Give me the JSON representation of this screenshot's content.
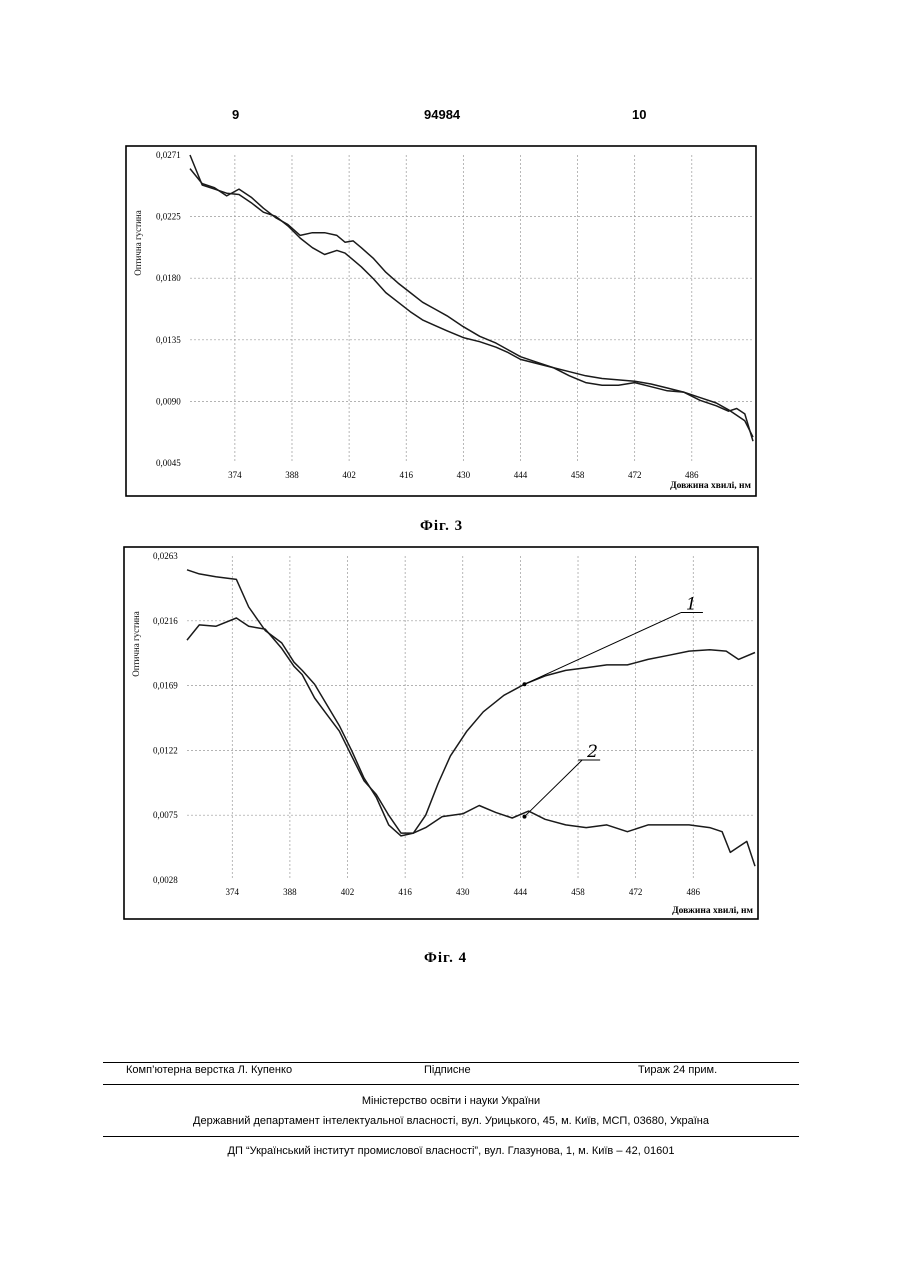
{
  "header": {
    "left_page": "9",
    "patent_number": "94984",
    "right_page": "10"
  },
  "chart_data": [
    {
      "type": "line",
      "caption": "Фіг. 3",
      "ylabel": "Оптична густина",
      "xlabel": "Довжина хвилі, нм",
      "ylim": [
        0.0045,
        0.0271
      ],
      "xlim": [
        363,
        501
      ],
      "y_ticks": [
        "0,0271",
        "0,0225",
        "0,0180",
        "0,0135",
        "0,0090",
        "0,0045"
      ],
      "x_ticks": [
        "374",
        "388",
        "402",
        "416",
        "430",
        "444",
        "458",
        "472",
        "486"
      ],
      "series": [
        {
          "values": [
            [
              363,
              0.0271
            ],
            [
              366,
              0.0249
            ],
            [
              369,
              0.0246
            ],
            [
              372,
              0.0243
            ],
            [
              375,
              0.0242
            ],
            [
              378,
              0.0236
            ],
            [
              381,
              0.0229
            ],
            [
              384,
              0.0226
            ],
            [
              387,
              0.0219
            ],
            [
              390,
              0.021
            ],
            [
              393,
              0.0203
            ],
            [
              396,
              0.0198
            ],
            [
              399,
              0.0201
            ],
            [
              401,
              0.0199
            ],
            [
              403,
              0.0194
            ],
            [
              405,
              0.0189
            ],
            [
              408,
              0.018
            ],
            [
              411,
              0.017
            ],
            [
              414,
              0.0163
            ],
            [
              417,
              0.0156
            ],
            [
              420,
              0.015
            ],
            [
              423,
              0.0146
            ],
            [
              426,
              0.0142
            ],
            [
              430,
              0.0137
            ],
            [
              434,
              0.0134
            ],
            [
              438,
              0.013
            ],
            [
              441,
              0.0126
            ],
            [
              444,
              0.0121
            ],
            [
              448,
              0.0118
            ],
            [
              452,
              0.0115
            ],
            [
              456,
              0.0112
            ],
            [
              460,
              0.0109
            ],
            [
              464,
              0.0107
            ],
            [
              468,
              0.0106
            ],
            [
              472,
              0.0105
            ],
            [
              476,
              0.0103
            ],
            [
              480,
              0.01
            ],
            [
              484,
              0.0097
            ],
            [
              488,
              0.0093
            ],
            [
              492,
              0.0089
            ],
            [
              495,
              0.0084
            ],
            [
              497,
              0.008
            ],
            [
              499,
              0.0076
            ],
            [
              501,
              0.0064
            ]
          ]
        },
        {
          "values": [
            [
              363,
              0.0261
            ],
            [
              366,
              0.025
            ],
            [
              369,
              0.0247
            ],
            [
              372,
              0.0241
            ],
            [
              375,
              0.0246
            ],
            [
              378,
              0.024
            ],
            [
              381,
              0.0232
            ],
            [
              384,
              0.0225
            ],
            [
              387,
              0.022
            ],
            [
              390,
              0.0212
            ],
            [
              393,
              0.0214
            ],
            [
              396,
              0.0214
            ],
            [
              399,
              0.0212
            ],
            [
              401,
              0.0207
            ],
            [
              403,
              0.0208
            ],
            [
              405,
              0.0203
            ],
            [
              408,
              0.0195
            ],
            [
              411,
              0.0185
            ],
            [
              414,
              0.0177
            ],
            [
              417,
              0.017
            ],
            [
              420,
              0.0163
            ],
            [
              423,
              0.0158
            ],
            [
              426,
              0.0153
            ],
            [
              430,
              0.0145
            ],
            [
              434,
              0.0138
            ],
            [
              438,
              0.0133
            ],
            [
              441,
              0.0128
            ],
            [
              444,
              0.0123
            ],
            [
              448,
              0.0119
            ],
            [
              452,
              0.0115
            ],
            [
              456,
              0.0109
            ],
            [
              460,
              0.0104
            ],
            [
              464,
              0.0102
            ],
            [
              468,
              0.0102
            ],
            [
              472,
              0.0104
            ],
            [
              476,
              0.0101
            ],
            [
              480,
              0.0098
            ],
            [
              484,
              0.0097
            ],
            [
              488,
              0.0091
            ],
            [
              492,
              0.0087
            ],
            [
              495,
              0.0083
            ],
            [
              497,
              0.0085
            ],
            [
              499,
              0.0081
            ],
            [
              501,
              0.0061
            ]
          ]
        }
      ]
    },
    {
      "type": "line",
      "caption": "Фіг. 4",
      "ylabel": "Оптична густина",
      "xlabel": "Довжина хвилі, нм",
      "ylim": [
        0.0028,
        0.0263
      ],
      "xlim": [
        363,
        501
      ],
      "y_ticks": [
        "0,0263",
        "0,0216",
        "0,0169",
        "0,0122",
        "0,0075",
        "0,0028"
      ],
      "x_ticks": [
        "374",
        "388",
        "402",
        "416",
        "430",
        "444",
        "458",
        "472",
        "486"
      ],
      "annotations": [
        "1",
        "2"
      ],
      "series": [
        {
          "name": "1",
          "values": [
            [
              363,
              0.0253
            ],
            [
              366,
              0.025
            ],
            [
              370,
              0.0248
            ],
            [
              375,
              0.0246
            ],
            [
              378,
              0.0226
            ],
            [
              382,
              0.0209
            ],
            [
              386,
              0.02
            ],
            [
              389,
              0.0186
            ],
            [
              391,
              0.018
            ],
            [
              394,
              0.017
            ],
            [
              397,
              0.0155
            ],
            [
              400,
              0.014
            ],
            [
              403,
              0.0122
            ],
            [
              406,
              0.0102
            ],
            [
              409,
              0.0088
            ],
            [
              412,
              0.0068
            ],
            [
              415,
              0.006
            ],
            [
              418,
              0.0062
            ],
            [
              421,
              0.0075
            ],
            [
              424,
              0.0098
            ],
            [
              427,
              0.0118
            ],
            [
              431,
              0.0136
            ],
            [
              435,
              0.015
            ],
            [
              440,
              0.0162
            ],
            [
              445,
              0.017
            ],
            [
              450,
              0.0176
            ],
            [
              455,
              0.018
            ],
            [
              460,
              0.0182
            ],
            [
              465,
              0.0184
            ],
            [
              470,
              0.0184
            ],
            [
              475,
              0.0188
            ],
            [
              480,
              0.0191
            ],
            [
              485,
              0.0194
            ],
            [
              490,
              0.0195
            ],
            [
              494,
              0.0194
            ],
            [
              497,
              0.0188
            ],
            [
              501,
              0.0193
            ]
          ]
        },
        {
          "name": "2",
          "values": [
            [
              363,
              0.0202
            ],
            [
              366,
              0.0213
            ],
            [
              370,
              0.0212
            ],
            [
              375,
              0.0218
            ],
            [
              378,
              0.0212
            ],
            [
              382,
              0.021
            ],
            [
              386,
              0.0196
            ],
            [
              389,
              0.0183
            ],
            [
              391,
              0.0177
            ],
            [
              394,
              0.016
            ],
            [
              397,
              0.0148
            ],
            [
              400,
              0.0136
            ],
            [
              403,
              0.0118
            ],
            [
              406,
              0.01
            ],
            [
              409,
              0.009
            ],
            [
              412,
              0.0075
            ],
            [
              415,
              0.0062
            ],
            [
              418,
              0.0062
            ],
            [
              421,
              0.0066
            ],
            [
              425,
              0.0074
            ],
            [
              430,
              0.0076
            ],
            [
              434,
              0.0082
            ],
            [
              438,
              0.0077
            ],
            [
              442,
              0.0073
            ],
            [
              446,
              0.0078
            ],
            [
              450,
              0.0072
            ],
            [
              455,
              0.0068
            ],
            [
              460,
              0.0066
            ],
            [
              465,
              0.0068
            ],
            [
              470,
              0.0063
            ],
            [
              475,
              0.0068
            ],
            [
              480,
              0.0068
            ],
            [
              485,
              0.0068
            ],
            [
              490,
              0.0066
            ],
            [
              493,
              0.0063
            ],
            [
              495,
              0.0048
            ],
            [
              497,
              0.0052
            ],
            [
              499,
              0.0056
            ],
            [
              501,
              0.0038
            ]
          ]
        }
      ]
    }
  ],
  "footer": {
    "layout": "Комп’ютерна верстка Л. Купенко",
    "signed": "Підписне",
    "print_run": "Тираж 24 прим.",
    "ministry": "Міністерство освіти і науки України",
    "department": "Державний департамент інтелектуальної власності, вул. Урицького, 45, м. Київ, МСП, 03680, Україна",
    "institute": "ДП “Український інститут промислової власності”, вул. Глазунова, 1, м. Київ – 42, 01601"
  }
}
